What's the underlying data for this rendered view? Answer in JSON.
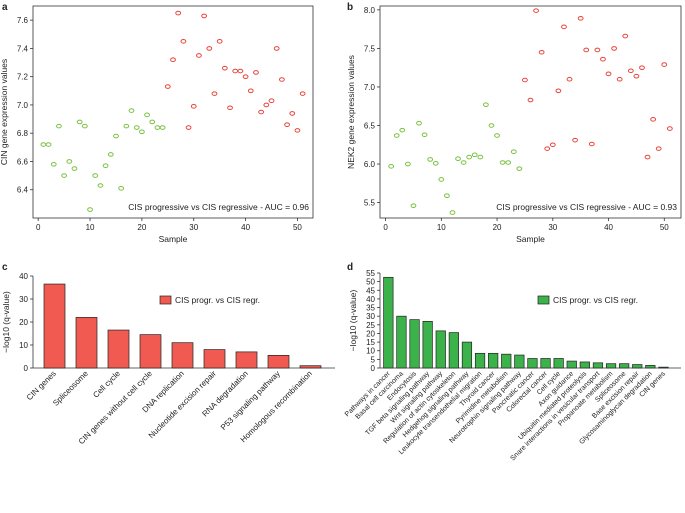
{
  "chart_data": [
    {
      "panel": "a",
      "type": "scatter",
      "xlabel": "Sample",
      "ylabel": "CIN gene expression values",
      "xlim": [
        -1,
        53
      ],
      "ylim": [
        6.2,
        7.7
      ],
      "xticks": [
        0,
        10,
        20,
        30,
        40,
        50
      ],
      "yticks": [
        6.4,
        6.6,
        6.8,
        7.0,
        7.2,
        7.4,
        7.6
      ],
      "annotation": "CIS progressive vs CIS regressive - AUC = 0.96",
      "series": [
        {
          "name": "CIS regressive",
          "color": "#7ac142",
          "x": [
            1,
            2,
            3,
            4,
            5,
            6,
            7,
            8,
            9,
            10,
            11,
            12,
            13,
            14,
            15,
            16,
            17,
            18,
            19,
            20,
            21,
            22,
            23,
            24
          ],
          "y": [
            6.72,
            6.72,
            6.58,
            6.85,
            6.5,
            6.6,
            6.55,
            6.88,
            6.85,
            6.26,
            6.5,
            6.43,
            6.57,
            6.65,
            6.78,
            6.41,
            6.85,
            6.96,
            6.84,
            6.81,
            6.93,
            6.88,
            6.84,
            6.84
          ]
        },
        {
          "name": "CIS progressive",
          "color": "#e8433a",
          "x": [
            25,
            26,
            27,
            28,
            29,
            30,
            31,
            32,
            33,
            34,
            35,
            36,
            37,
            38,
            39,
            40,
            41,
            42,
            43,
            44,
            45,
            46,
            47,
            48,
            49,
            50,
            51
          ],
          "y": [
            7.13,
            7.32,
            7.65,
            7.45,
            6.84,
            6.99,
            7.35,
            7.63,
            7.4,
            7.08,
            7.45,
            7.26,
            6.98,
            7.24,
            7.24,
            7.2,
            7.1,
            7.23,
            6.95,
            7.0,
            7.03,
            7.4,
            7.18,
            6.86,
            6.94,
            6.82,
            7.08
          ]
        }
      ]
    },
    {
      "panel": "b",
      "type": "scatter",
      "xlabel": "Sample",
      "ylabel": "NEK2 gene expression values",
      "xlim": [
        -1,
        53
      ],
      "ylim": [
        5.3,
        8.05
      ],
      "xticks": [
        0,
        10,
        20,
        30,
        40,
        50
      ],
      "yticks": [
        5.5,
        6.0,
        6.5,
        7.0,
        7.5,
        8.0
      ],
      "annotation": "CIS progressive vs CIS regressive - AUC = 0.93",
      "series": [
        {
          "name": "CIS regressive",
          "color": "#7ac142",
          "x": [
            1,
            2,
            3,
            4,
            5,
            6,
            7,
            8,
            9,
            10,
            11,
            12,
            13,
            14,
            15,
            16,
            17,
            18,
            19,
            20,
            21,
            22,
            23,
            24
          ],
          "y": [
            5.97,
            6.37,
            6.44,
            6.0,
            5.46,
            6.53,
            6.38,
            6.06,
            6.01,
            5.8,
            5.59,
            5.37,
            6.07,
            6.02,
            6.09,
            6.12,
            6.09,
            6.77,
            6.5,
            6.37,
            6.02,
            6.02,
            6.16,
            5.94
          ]
        },
        {
          "name": "CIS progressive",
          "color": "#e8433a",
          "x": [
            25,
            26,
            27,
            28,
            29,
            30,
            31,
            32,
            33,
            34,
            35,
            36,
            37,
            38,
            39,
            40,
            41,
            42,
            43,
            44,
            45,
            46,
            47,
            48,
            49,
            50,
            51
          ],
          "y": [
            7.09,
            6.83,
            7.99,
            7.45,
            6.2,
            6.25,
            6.95,
            7.78,
            7.1,
            6.31,
            7.89,
            7.48,
            6.26,
            7.48,
            7.36,
            7.17,
            7.5,
            7.1,
            7.66,
            7.21,
            7.14,
            7.25,
            6.09,
            6.58,
            6.2,
            7.29,
            6.46
          ]
        }
      ]
    },
    {
      "panel": "c",
      "type": "bar",
      "ylabel": "−log10 (q-value)",
      "ylim": [
        0,
        40
      ],
      "yticks": [
        0,
        10,
        20,
        30,
        40
      ],
      "legend": "CIS progr. vs CIS regr.",
      "color": "#f05a51",
      "categories": [
        "CIN genes",
        "Spliceosome",
        "Cell cycle",
        "CIN genes without cell cycle",
        "DNA replication",
        "Nucleotide excision repair",
        "RNA degradation",
        "P53 signaling pathway",
        "Homologous recombination"
      ],
      "values": [
        36.5,
        22.0,
        16.5,
        14.5,
        11.0,
        8.0,
        7.0,
        5.5,
        1.0
      ]
    },
    {
      "panel": "d",
      "type": "bar",
      "ylabel": "−log10 (q-value)",
      "ylim": [
        0,
        55
      ],
      "yticks": [
        0,
        5,
        10,
        15,
        20,
        25,
        30,
        35,
        40,
        45,
        50,
        55
      ],
      "legend": "CIS progr. vs CIS regr.",
      "color": "#3bb34a",
      "categories": [
        "Pathways in cancer",
        "Basal cell carcinoma",
        "Endocytosis",
        "TGF beta signaling pathway",
        "Wnt signaling pathway",
        "Regulation of actin cytoskeleton",
        "Hedgehog signaling pathway",
        "Leukocyte transendothelial migration",
        "Thyroid cancer",
        "Pyrimidine metabolism",
        "Neurotrophin signaling pathway",
        "Pancreatic cancer",
        "Colorectal cancer",
        "Cell cycle",
        "Axon guidance",
        "Ubiquitin mediated proteolysis",
        "Snare interactions in vesicular transport",
        "Propanoate metabolism",
        "Spliceosome",
        "Base excision repair",
        "Glycosaminoglycan degradation",
        "CIN genes"
      ],
      "values": [
        52.5,
        30.0,
        28.0,
        27.0,
        21.5,
        20.5,
        15.0,
        8.5,
        8.5,
        8.0,
        7.5,
        5.5,
        5.5,
        5.5,
        4.0,
        3.5,
        3.0,
        2.5,
        2.5,
        2.0,
        1.5,
        0.5
      ]
    }
  ]
}
